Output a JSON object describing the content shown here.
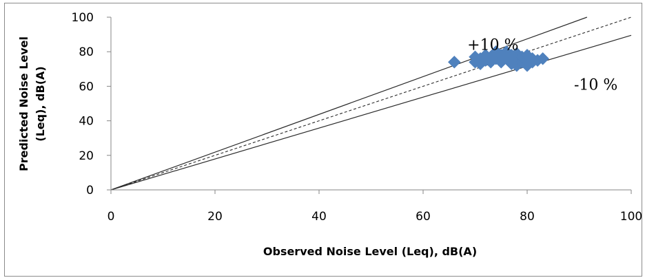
{
  "chart_data": {
    "type": "scatter",
    "title": "",
    "xlabel": "Observed Noise Level (Leq), dB(A)",
    "ylabel_lines": [
      "Predicted Noise Level",
      "(Leq), dB(A)"
    ],
    "xlim": [
      0,
      100
    ],
    "ylim": [
      0,
      100
    ],
    "x_ticks": [
      "0",
      "20",
      "40",
      "60",
      "80",
      "100"
    ],
    "y_ticks": [
      "0",
      "20",
      "40",
      "60",
      "80",
      "100"
    ],
    "grid": false,
    "legend": "none",
    "marker": "diamond",
    "marker_color": "#4F81BD",
    "points": [
      {
        "x": 66,
        "y": 74
      },
      {
        "x": 70,
        "y": 77
      },
      {
        "x": 70,
        "y": 74
      },
      {
        "x": 71,
        "y": 73
      },
      {
        "x": 71,
        "y": 76
      },
      {
        "x": 72,
        "y": 78
      },
      {
        "x": 72,
        "y": 75
      },
      {
        "x": 73,
        "y": 74
      },
      {
        "x": 73,
        "y": 77
      },
      {
        "x": 74,
        "y": 80
      },
      {
        "x": 74,
        "y": 76
      },
      {
        "x": 75,
        "y": 78
      },
      {
        "x": 75,
        "y": 74
      },
      {
        "x": 76,
        "y": 77
      },
      {
        "x": 76,
        "y": 80
      },
      {
        "x": 77,
        "y": 73
      },
      {
        "x": 77,
        "y": 75
      },
      {
        "x": 77,
        "y": 78
      },
      {
        "x": 78,
        "y": 72
      },
      {
        "x": 78,
        "y": 76
      },
      {
        "x": 78,
        "y": 79
      },
      {
        "x": 79,
        "y": 74
      },
      {
        "x": 79,
        "y": 77
      },
      {
        "x": 80,
        "y": 72
      },
      {
        "x": 80,
        "y": 75
      },
      {
        "x": 80,
        "y": 78
      },
      {
        "x": 81,
        "y": 74
      },
      {
        "x": 81,
        "y": 76
      },
      {
        "x": 82,
        "y": 75
      },
      {
        "x": 83,
        "y": 76
      }
    ],
    "reference_lines": [
      {
        "style": "dashed",
        "from": [
          0,
          0
        ],
        "to": [
          100,
          100
        ]
      },
      {
        "style": "solid",
        "from": [
          0,
          0
        ],
        "to": [
          91.5,
          100
        ]
      },
      {
        "style": "solid",
        "from": [
          0,
          0
        ],
        "to": [
          100,
          89.5
        ]
      }
    ],
    "annotations": [
      {
        "text": "+10 %",
        "x": 68.5,
        "y": 81
      },
      {
        "text": "-10 %",
        "x": 89,
        "y": 58
      }
    ]
  }
}
